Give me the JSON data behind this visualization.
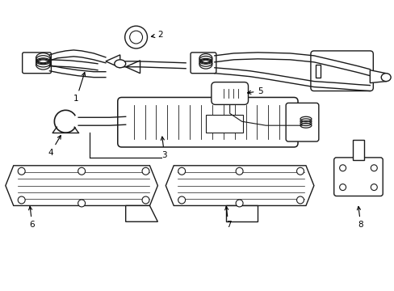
{
  "background_color": "#ffffff",
  "line_color": "#1a1a1a",
  "lw": 1.0,
  "figsize": [
    4.89,
    3.6
  ],
  "dpi": 100,
  "components": {
    "gasket_outer_r": 0.03,
    "gasket_inner_r": 0.016
  }
}
